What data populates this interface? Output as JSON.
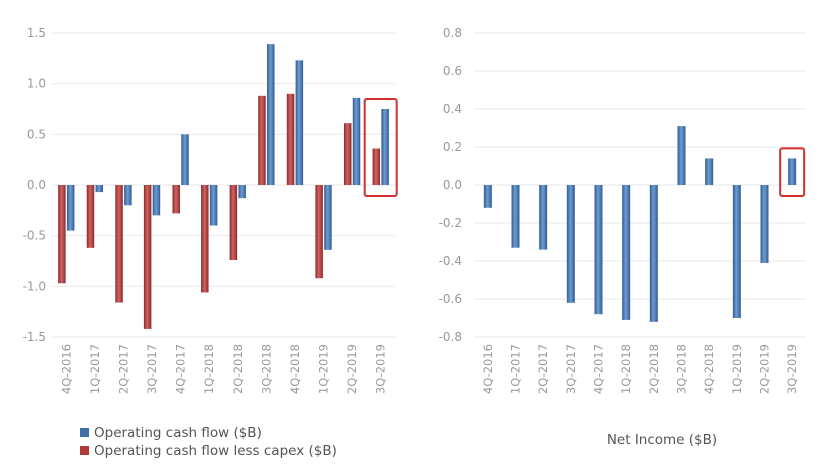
{
  "chart_data": [
    {
      "type": "bar",
      "categories": [
        "4Q-2016",
        "1Q-2017",
        "2Q-2017",
        "3Q-2017",
        "4Q-2017",
        "1Q-2018",
        "2Q-2018",
        "3Q-2018",
        "4Q-2018",
        "1Q-2019",
        "2Q-2019",
        "3Q-2019"
      ],
      "series": [
        {
          "name": "Operating cash flow less capex ($B)",
          "color": "#b03a3a",
          "values": [
            -0.97,
            -0.62,
            -1.16,
            -1.42,
            -0.28,
            -1.06,
            -0.74,
            0.88,
            0.9,
            -0.92,
            0.61,
            0.36
          ]
        },
        {
          "name": "Operating cash flow ($B)",
          "color": "#3d6fa8",
          "values": [
            -0.45,
            -0.07,
            -0.2,
            -0.3,
            0.5,
            -0.4,
            -0.13,
            1.39,
            1.23,
            -0.64,
            0.86,
            0.75
          ]
        }
      ],
      "ylim": [
        -1.5,
        1.5
      ],
      "yticks": [
        1.5,
        1.0,
        0.5,
        0.0,
        -0.5,
        -1.0,
        -1.5
      ],
      "ytick_labels": [
        "1.5",
        "1.0",
        "0.5",
        "0.0",
        "-0.5",
        "-1.0",
        "-1.5"
      ],
      "legend": [
        "Operating cash flow ($B)",
        "Operating cash flow less capex ($B)"
      ],
      "legend_position": "bottom-left",
      "highlight_category": "3Q-2019",
      "grid": true
    },
    {
      "type": "bar",
      "categories": [
        "4Q-2016",
        "1Q-2017",
        "2Q-2017",
        "3Q-2017",
        "4Q-2017",
        "1Q-2018",
        "2Q-2018",
        "3Q-2018",
        "4Q-2018",
        "1Q-2019",
        "2Q-2019",
        "3Q-2019"
      ],
      "series": [
        {
          "name": "Net Income ($B)",
          "color": "#3d6fa8",
          "values": [
            -0.12,
            -0.33,
            -0.34,
            -0.62,
            -0.68,
            -0.71,
            -0.72,
            0.31,
            0.14,
            -0.7,
            -0.41,
            0.14
          ]
        }
      ],
      "ylim": [
        -0.8,
        0.8
      ],
      "yticks": [
        0.8,
        0.6,
        0.4,
        0.2,
        0.0,
        -0.2,
        -0.4,
        -0.6,
        -0.8
      ],
      "ytick_labels": [
        "0.8",
        "0.6",
        "0.4",
        "0.2",
        "0.0",
        "-0.2",
        "-0.4",
        "-0.6",
        "-0.8"
      ],
      "xlabel": "Net Income ($B)",
      "highlight_category": "3Q-2019",
      "grid": true
    }
  ],
  "colors": {
    "highlight_box": "#d32f2f",
    "grid": "#e9e9e9",
    "tick_text": "#999999"
  }
}
